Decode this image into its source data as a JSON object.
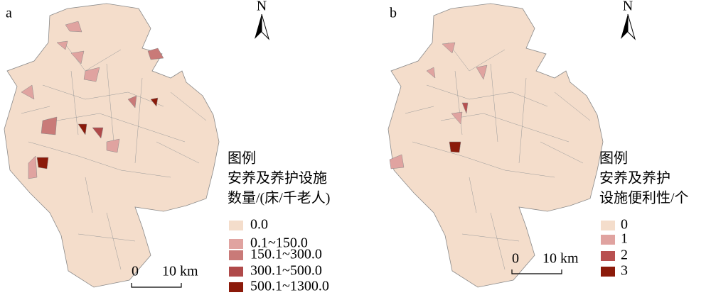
{
  "panels": [
    {
      "label": "a",
      "north": "N",
      "legend": {
        "title": [
          "图例",
          "安养及养护设施",
          "数量/(床/千老人)"
        ],
        "items": [
          {
            "label": "0.0",
            "color": "#f4ddcb"
          },
          {
            "label": "0.1~150.0",
            "color": "#e0a3a0"
          },
          {
            "label": "150.1~300.0",
            "color": "#c97a78"
          },
          {
            "label": "300.1~500.0",
            "color": "#b04a4a"
          },
          {
            "label": "500.1~1300.0",
            "color": "#8b1a0a"
          }
        ]
      },
      "scale": {
        "zero": "0",
        "distance": "10 km"
      }
    },
    {
      "label": "b",
      "north": "N",
      "legend": {
        "title": [
          "图例",
          "安养及养护",
          "设施便利性/个"
        ],
        "items": [
          {
            "label": "0",
            "color": "#f4ddcb"
          },
          {
            "label": "1",
            "color": "#e0a3a0"
          },
          {
            "label": "2",
            "color": "#b85050"
          },
          {
            "label": "3",
            "color": "#8b1a0a"
          }
        ]
      },
      "scale": {
        "zero": "0",
        "distance": "10 km"
      }
    }
  ]
}
